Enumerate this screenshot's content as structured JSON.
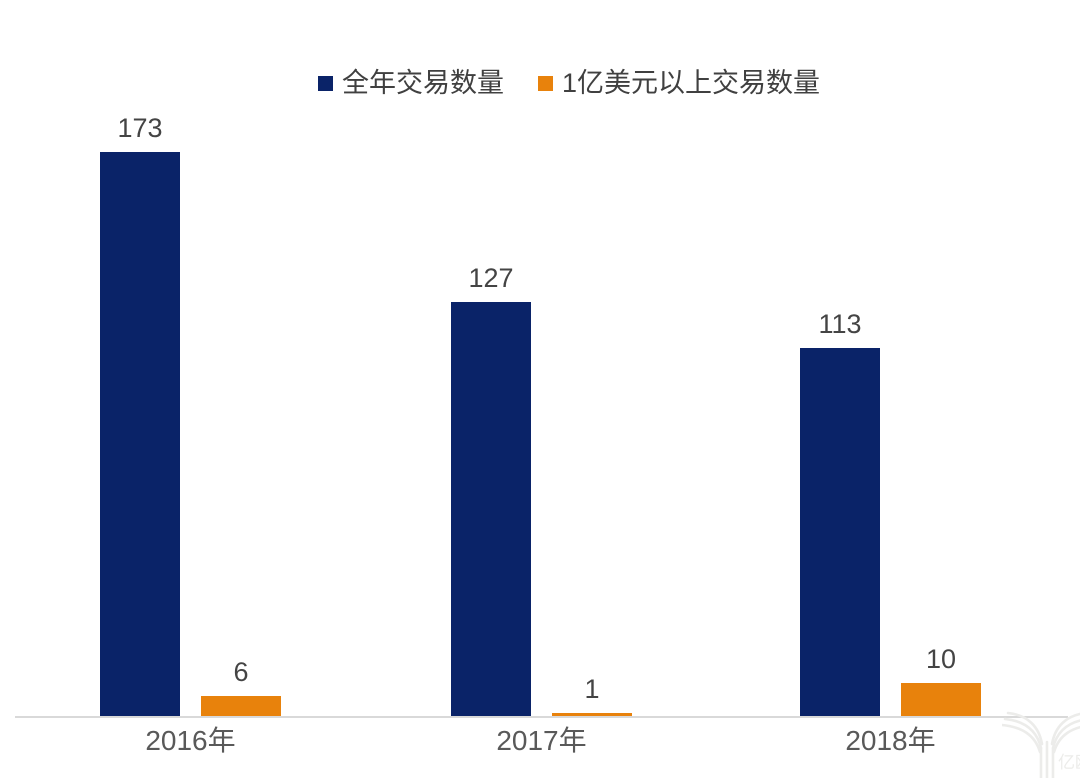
{
  "chart_data": {
    "type": "bar",
    "categories": [
      "2016年",
      "2017年",
      "2018年"
    ],
    "series": [
      {
        "name": "全年交易数量",
        "color": "#0a2368",
        "values": [
          173,
          127,
          113
        ]
      },
      {
        "name": "1亿美元以上交易数量",
        "color": "#e8820c",
        "values": [
          6,
          1,
          10
        ]
      }
    ],
    "title": "",
    "xlabel": "",
    "ylabel": "",
    "ylim": [
      0,
      180
    ],
    "grid": false,
    "legend_position": "top",
    "data_labels": true
  },
  "colors": {
    "axis_line": "#d9d9d9",
    "value_label": "#444444",
    "category_label": "#595959",
    "legend_label": "#404040",
    "background": "#ffffff",
    "watermark": "#ececea"
  },
  "watermark": {
    "text": "亿欧"
  }
}
